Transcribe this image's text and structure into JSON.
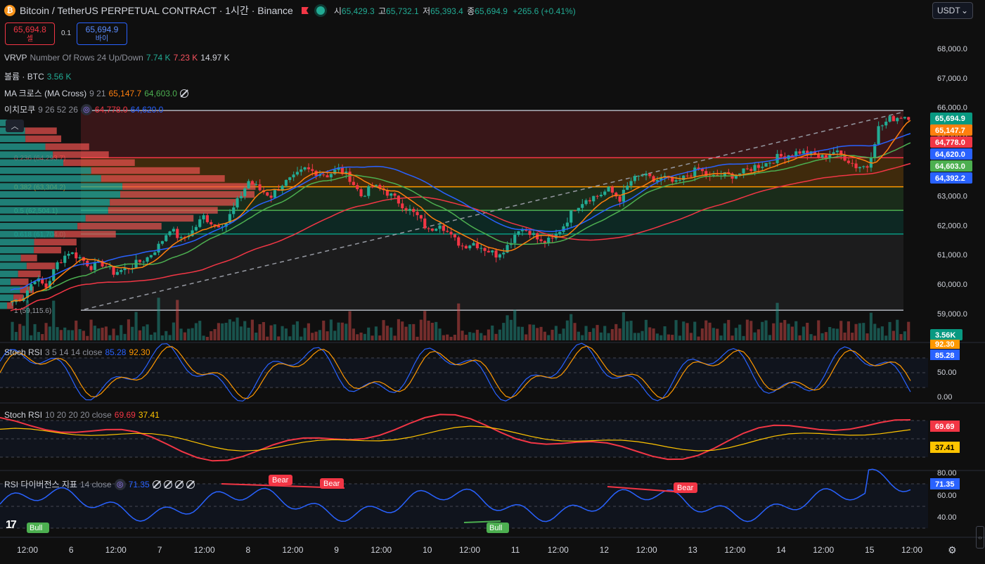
{
  "header": {
    "logo_icon": "bitcoin-icon",
    "title": "Bitcoin / TetherUS PERPETUAL CONTRACT · 1시간 · Binance",
    "open_label": "시",
    "open": "65,429.3",
    "high_label": "고",
    "high": "65,732.1",
    "low_label": "저",
    "low": "65,393.4",
    "close_label": "종",
    "close": "65,694.9",
    "change": "+265.6 (+0.41%)",
    "currency": "USDT"
  },
  "order": {
    "sell_price": "65,694.8",
    "sell_label": "셀",
    "qty": "0.1",
    "buy_price": "65,694.9",
    "buy_label": "바이"
  },
  "legends": {
    "vrvp_name": "VRVP",
    "vrvp_params": "Number Of Rows 24 Up/Down",
    "vrvp_up": "7.74 K",
    "vrvp_down": "7.23 K",
    "vrvp_total": "14.97 K",
    "vol_name": "볼륨 · BTC",
    "vol_value": "3.56 K",
    "ma_name": "MA 크로스 (MA Cross)",
    "ma_params": "9 21",
    "ma_fast": "65,147.7",
    "ma_slow": "64,603.0",
    "ichi_name": "이치모쿠",
    "ichi_params": "9 26 52 26",
    "ichi_a": "64,778.0",
    "ichi_b": "64,620.0",
    "srsi1_name": "Stoch RSI",
    "srsi1_params": "3 5 14 14 close",
    "srsi1_k": "85.28",
    "srsi1_d": "92.30",
    "srsi2_name": "Stoch RSI",
    "srsi2_params": "10 20 20 20 close",
    "srsi2_k": "69.69",
    "srsi2_d": "37.41",
    "rsid_name": "RSI 다이버전스 지표",
    "rsid_params": "14 close",
    "rsid_value": "71.35"
  },
  "colors": {
    "up": "#22ab94",
    "down": "#f23645",
    "ma_fast": "#ff7f0e",
    "ma_slow": "#4caf50",
    "ichi_conv": "#2962ff",
    "ichi_base": "#f23645",
    "stoch_k": "#2962ff",
    "stoch_d": "#ff9800",
    "rsi": "#2962ff",
    "bear": "#f23645",
    "bull": "#4caf50"
  },
  "chart_data": {
    "type": "candlestick",
    "symbol": "BTCUSDT.P",
    "price_axis": {
      "ticks": [
        59000,
        60000,
        61000,
        62000,
        63000,
        64000,
        65000,
        66000,
        67000,
        68000
      ],
      "tick_labels": [
        "59,000.0",
        "60,000.0",
        "61,000.0",
        "62,000.0",
        "63,000.0",
        "64,000.0",
        "65,000.0",
        "66,000.0",
        "67,000.0",
        "68,000.0"
      ],
      "range": [
        58300,
        68800
      ]
    },
    "time_axis": {
      "labels": [
        "12:00",
        "6",
        "12:00",
        "7",
        "12:00",
        "8",
        "12:00",
        "9",
        "12:00",
        "10",
        "12:00",
        "11",
        "12:00",
        "12",
        "12:00",
        "13",
        "12:00",
        "14",
        "12:00",
        "15",
        "12:00"
      ]
    },
    "fib_levels": [
      {
        "ratio": "0.236",
        "price": 64293.7,
        "label": "0.236 (64,293.7)"
      },
      {
        "ratio": "0.382",
        "price": 63304.2,
        "label": "0.382 (63,304.2)"
      },
      {
        "ratio": "0.5",
        "price": 62504.1,
        "label": "0.5 (62,504.1)"
      },
      {
        "ratio": "0.618",
        "price": 61704.0,
        "label": "0.618 (61,704.0)"
      },
      {
        "ratio": "1",
        "price": 59115.6,
        "label": "1 (59,115.6)"
      },
      {
        "ratio": "0",
        "price": 65893.0,
        "label": ""
      }
    ],
    "price_labels": [
      {
        "value": "65,694.9",
        "sub": "24:39",
        "color": "#089981"
      },
      {
        "value": "65,147.7",
        "color": "#ff7f0e"
      },
      {
        "value": "64,778.0",
        "color": "#f23645"
      },
      {
        "value": "64,620.0",
        "color": "#2962ff"
      },
      {
        "value": "64,603.0",
        "color": "#4caf50"
      },
      {
        "value": "64,392.2",
        "color": "#2962ff"
      }
    ],
    "volume_label": "3.56K",
    "close": [
      59400,
      59600,
      60200,
      59900,
      60700,
      61100,
      60900,
      60600,
      60700,
      60400,
      60500,
      60700,
      60900,
      61300,
      61900,
      61500,
      61800,
      62300,
      62000,
      62100,
      62800,
      63500,
      63200,
      63000,
      63400,
      63600,
      63900,
      63800,
      63700,
      63900,
      63600,
      63000,
      63300,
      63200,
      62900,
      62600,
      62300,
      61800,
      62100,
      61600,
      61300,
      61400,
      61200,
      61000,
      61300,
      61900,
      61800,
      61400,
      61500,
      62000,
      62600,
      62900,
      63000,
      63200,
      62900,
      63500,
      63700,
      63500,
      63600,
      63400,
      63700,
      63900,
      63600,
      63700,
      63700,
      63800,
      64000,
      64100,
      64300,
      64400,
      64500,
      64400,
      64300,
      64500,
      64300,
      64000,
      64000,
      65300,
      65600,
      65700
    ],
    "stoch_rsi_1": {
      "k_last": 85.28,
      "d_last": 92.3,
      "axis": [
        "50.00",
        "0.00"
      ],
      "levels": [
        80,
        20
      ]
    },
    "stoch_rsi_2": {
      "k_last": 69.69,
      "d_last": 37.41,
      "levels": [
        80,
        50,
        20
      ]
    },
    "rsi_divergence": {
      "last": 71.35,
      "axis": [
        "80.00",
        "60.00",
        "40.00"
      ],
      "bear_label": "Bear",
      "bull_label": "Bull"
    }
  }
}
